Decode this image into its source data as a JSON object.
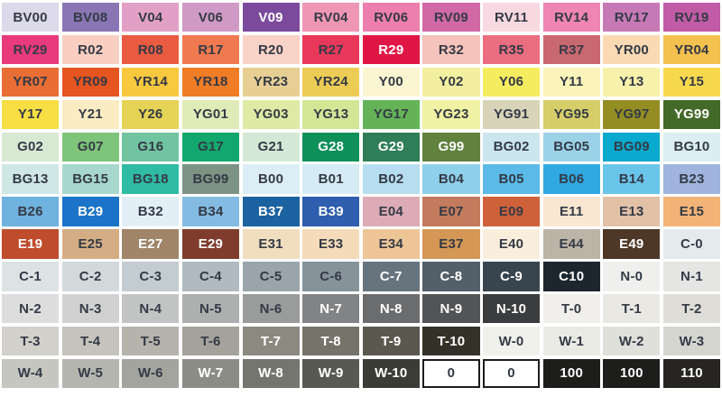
{
  "page": {
    "title": "Copic marker color chart",
    "background": "#ffffff",
    "label_color": "#343a46",
    "light_label_color": "#ffffff",
    "outline_color": "#1c1c1c"
  },
  "grid": {
    "columns": 12,
    "rows": [
      {
        "cells": [
          {
            "label": "BV00",
            "bg": "#dcd9ea"
          },
          {
            "label": "BV08",
            "bg": "#8a76b4"
          },
          {
            "label": "V04",
            "bg": "#e3a0c6"
          },
          {
            "label": "V06",
            "bg": "#cf9ac6"
          },
          {
            "label": "V09",
            "bg": "#7b4a9d",
            "light": true
          },
          {
            "label": "RV04",
            "bg": "#f096b5"
          },
          {
            "label": "RV06",
            "bg": "#ec7fae"
          },
          {
            "label": "RV09",
            "bg": "#d069a6"
          },
          {
            "label": "RV11",
            "bg": "#f9d9e1"
          },
          {
            "label": "RV14",
            "bg": "#ee85b3"
          },
          {
            "label": "RV17",
            "bg": "#c779b5"
          },
          {
            "label": "RV19",
            "bg": "#c25ba6"
          }
        ]
      },
      {
        "cells": [
          {
            "label": "RV29",
            "bg": "#e93a7c"
          },
          {
            "label": "R02",
            "bg": "#f9cfc1"
          },
          {
            "label": "R08",
            "bg": "#e95c41"
          },
          {
            "label": "R17",
            "bg": "#f0794f"
          },
          {
            "label": "R20",
            "bg": "#f9d2c8"
          },
          {
            "label": "R27",
            "bg": "#e8395a"
          },
          {
            "label": "R29",
            "bg": "#e01745",
            "light": true
          },
          {
            "label": "R32",
            "bg": "#f5c3bb"
          },
          {
            "label": "R35",
            "bg": "#eb6d80"
          },
          {
            "label": "R37",
            "bg": "#c96870"
          },
          {
            "label": "YR00",
            "bg": "#fbd9b3"
          },
          {
            "label": "YR04",
            "bg": "#f4c04e"
          }
        ]
      },
      {
        "cells": [
          {
            "label": "YR07",
            "bg": "#e96e35"
          },
          {
            "label": "YR09",
            "bg": "#e65420"
          },
          {
            "label": "YR14",
            "bg": "#f8c83e"
          },
          {
            "label": "YR18",
            "bg": "#f07c26"
          },
          {
            "label": "YR23",
            "bg": "#e7cf93"
          },
          {
            "label": "YR24",
            "bg": "#edcc55"
          },
          {
            "label": "Y00",
            "bg": "#fbf5d2"
          },
          {
            "label": "Y02",
            "bg": "#f2efa0"
          },
          {
            "label": "Y06",
            "bg": "#f6ec5f"
          },
          {
            "label": "Y11",
            "bg": "#fbf4ba"
          },
          {
            "label": "Y13",
            "bg": "#f7f1ab"
          },
          {
            "label": "Y15",
            "bg": "#f8d94e"
          }
        ]
      },
      {
        "cells": [
          {
            "label": "Y17",
            "bg": "#f7de43"
          },
          {
            "label": "Y21",
            "bg": "#fcecc3"
          },
          {
            "label": "Y26",
            "bg": "#e5d355"
          },
          {
            "label": "YG01",
            "bg": "#dfecb8"
          },
          {
            "label": "YG03",
            "bg": "#dfeaa4"
          },
          {
            "label": "YG13",
            "bg": "#d2e696"
          },
          {
            "label": "YG17",
            "bg": "#64b457"
          },
          {
            "label": "YG23",
            "bg": "#f0f1a2"
          },
          {
            "label": "YG91",
            "bg": "#d8d4b9"
          },
          {
            "label": "YG95",
            "bg": "#d6ce68"
          },
          {
            "label": "YG97",
            "bg": "#938d22"
          },
          {
            "label": "YG99",
            "bg": "#446a2a",
            "light": true
          }
        ]
      },
      {
        "cells": [
          {
            "label": "G02",
            "bg": "#d8e9d3"
          },
          {
            "label": "G07",
            "bg": "#7ec47a"
          },
          {
            "label": "G16",
            "bg": "#71c4a0"
          },
          {
            "label": "G17",
            "bg": "#12a86d"
          },
          {
            "label": "G21",
            "bg": "#d3e9d5"
          },
          {
            "label": "G28",
            "bg": "#0e9059",
            "light": true
          },
          {
            "label": "G29",
            "bg": "#2f7e57",
            "light": true
          },
          {
            "label": "G99",
            "bg": "#61813f",
            "light": true
          },
          {
            "label": "BG02",
            "bg": "#cbe6ef"
          },
          {
            "label": "BG05",
            "bg": "#9bd2e8"
          },
          {
            "label": "BG09",
            "bg": "#0aa9ce"
          },
          {
            "label": "BG10",
            "bg": "#dbeef1"
          }
        ]
      },
      {
        "cells": [
          {
            "label": "BG13",
            "bg": "#cfe7e5"
          },
          {
            "label": "BG15",
            "bg": "#a8d8cd"
          },
          {
            "label": "BG18",
            "bg": "#30bba4"
          },
          {
            "label": "BG99",
            "bg": "#7d9384"
          },
          {
            "label": "B00",
            "bg": "#dceef5"
          },
          {
            "label": "B01",
            "bg": "#d5ecf5"
          },
          {
            "label": "B02",
            "bg": "#b6def0"
          },
          {
            "label": "B04",
            "bg": "#8fd0ea"
          },
          {
            "label": "B05",
            "bg": "#5bbae8"
          },
          {
            "label": "B06",
            "bg": "#30a9e2"
          },
          {
            "label": "B14",
            "bg": "#6ac5eb"
          },
          {
            "label": "B23",
            "bg": "#a0b4de"
          }
        ]
      },
      {
        "cells": [
          {
            "label": "B26",
            "bg": "#6fb1df"
          },
          {
            "label": "B29",
            "bg": "#1b74c7",
            "light": true
          },
          {
            "label": "B32",
            "bg": "#e3eff7"
          },
          {
            "label": "B34",
            "bg": "#84bbe3"
          },
          {
            "label": "B37",
            "bg": "#1c62a0",
            "light": true
          },
          {
            "label": "B39",
            "bg": "#2e5ead",
            "light": true
          },
          {
            "label": "E04",
            "bg": "#dcabb5"
          },
          {
            "label": "E07",
            "bg": "#c27b5c"
          },
          {
            "label": "E09",
            "bg": "#ce6139"
          },
          {
            "label": "E11",
            "bg": "#f9e7d1"
          },
          {
            "label": "E13",
            "bg": "#e2c1a7"
          },
          {
            "label": "E15",
            "bg": "#f2b377"
          }
        ]
      },
      {
        "cells": [
          {
            "label": "E19",
            "bg": "#bf4c2c",
            "light": true
          },
          {
            "label": "E25",
            "bg": "#d5ad84"
          },
          {
            "label": "E27",
            "bg": "#a08569",
            "light": true
          },
          {
            "label": "E29",
            "bg": "#7f3c2d",
            "light": true
          },
          {
            "label": "E31",
            "bg": "#f0debf"
          },
          {
            "label": "E33",
            "bg": "#f4dbb9"
          },
          {
            "label": "E34",
            "bg": "#eec596"
          },
          {
            "label": "E37",
            "bg": "#d49755"
          },
          {
            "label": "E40",
            "bg": "#f9eedc"
          },
          {
            "label": "E44",
            "bg": "#bcb4a7"
          },
          {
            "label": "E49",
            "bg": "#4e3727",
            "light": true
          },
          {
            "label": "C-0",
            "bg": "#e5ebed"
          }
        ]
      },
      {
        "cells": [
          {
            "label": "C-1",
            "bg": "#dde3e5"
          },
          {
            "label": "C-2",
            "bg": "#d2d9db"
          },
          {
            "label": "C-3",
            "bg": "#c3ccd0"
          },
          {
            "label": "C-4",
            "bg": "#b0bac0"
          },
          {
            "label": "C-5",
            "bg": "#99a5ab"
          },
          {
            "label": "C-6",
            "bg": "#86939a"
          },
          {
            "label": "C-7",
            "bg": "#67747d",
            "light": true
          },
          {
            "label": "C-8",
            "bg": "#535f69",
            "light": true
          },
          {
            "label": "C-9",
            "bg": "#39454e",
            "light": true
          },
          {
            "label": "C10",
            "bg": "#1d262e",
            "light": true
          },
          {
            "label": "N-0",
            "bg": "#efefee"
          },
          {
            "label": "N-1",
            "bg": "#e5e5e4"
          }
        ]
      },
      {
        "cells": [
          {
            "label": "N-2",
            "bg": "#dcdddc"
          },
          {
            "label": "N-3",
            "bg": "#d0d1d0"
          },
          {
            "label": "N-4",
            "bg": "#c2c3c3"
          },
          {
            "label": "N-5",
            "bg": "#aeafaf"
          },
          {
            "label": "N-6",
            "bg": "#9a9b9b"
          },
          {
            "label": "N-7",
            "bg": "#828384",
            "light": true
          },
          {
            "label": "N-8",
            "bg": "#6b6c6d",
            "light": true
          },
          {
            "label": "N-9",
            "bg": "#535455",
            "light": true
          },
          {
            "label": "N-10",
            "bg": "#3a3c3d",
            "light": true
          },
          {
            "label": "T-0",
            "bg": "#f0efeb"
          },
          {
            "label": "T-1",
            "bg": "#e9e8e3"
          },
          {
            "label": "T-2",
            "bg": "#dfddd7"
          }
        ]
      },
      {
        "cells": [
          {
            "label": "T-3",
            "bg": "#d2d0ca"
          },
          {
            "label": "T-4",
            "bg": "#c5c3bc"
          },
          {
            "label": "T-5",
            "bg": "#b6b3ac"
          },
          {
            "label": "T-6",
            "bg": "#a5a29b"
          },
          {
            "label": "T-7",
            "bg": "#8c8981",
            "light": true
          },
          {
            "label": "T-8",
            "bg": "#76736b",
            "light": true
          },
          {
            "label": "T-9",
            "bg": "#5b5850",
            "light": true
          },
          {
            "label": "T-10",
            "bg": "#343129",
            "light": true
          },
          {
            "label": "W-0",
            "bg": "#f1f1ec"
          },
          {
            "label": "W-1",
            "bg": "#eaeae5"
          },
          {
            "label": "W-2",
            "bg": "#e0e0db"
          },
          {
            "label": "W-3",
            "bg": "#d5d5d0"
          }
        ]
      },
      {
        "cells": [
          {
            "label": "W-4",
            "bg": "#c6c6c1"
          },
          {
            "label": "W-5",
            "bg": "#b5b5b0"
          },
          {
            "label": "W-6",
            "bg": "#a4a49f"
          },
          {
            "label": "W-7",
            "bg": "#8c8c87",
            "light": true
          },
          {
            "label": "W-8",
            "bg": "#757570",
            "light": true
          },
          {
            "label": "W-9",
            "bg": "#595954",
            "light": true
          },
          {
            "label": "W-10",
            "bg": "#3c3c37",
            "light": true
          },
          {
            "label": "0",
            "bg": "#ffffff",
            "outlined": true
          },
          {
            "label": "0",
            "bg": "#ffffff",
            "outlined": true
          },
          {
            "label": "100",
            "bg": "#1d1d1b",
            "light": true
          },
          {
            "label": "100",
            "bg": "#1d1d1b",
            "light": true
          },
          {
            "label": "110",
            "bg": "#262522",
            "light": true
          }
        ]
      }
    ]
  }
}
